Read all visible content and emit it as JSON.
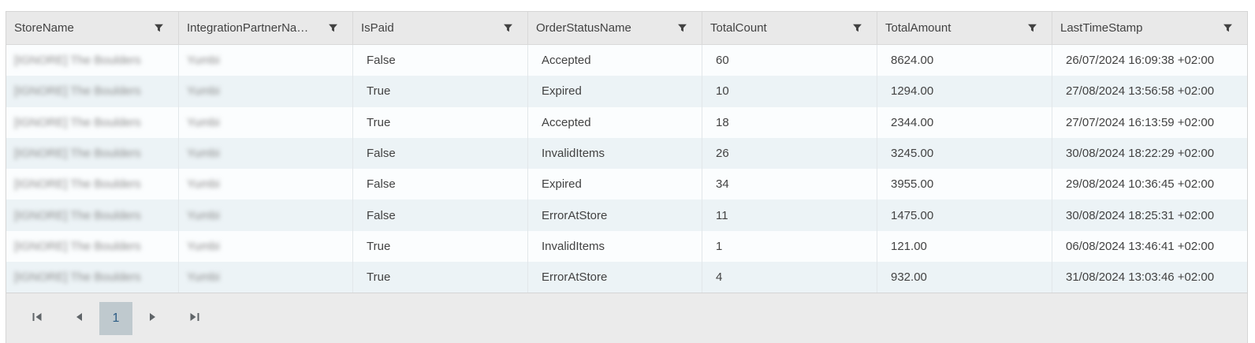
{
  "grid": {
    "columns": [
      {
        "label": "StoreName"
      },
      {
        "label": "IntegrationPartnerNa…"
      },
      {
        "label": "IsPaid"
      },
      {
        "label": "OrderStatusName"
      },
      {
        "label": "TotalCount"
      },
      {
        "label": "TotalAmount"
      },
      {
        "label": "LastTimeStamp"
      }
    ],
    "redacted_columns": [
      0,
      1
    ],
    "rows": [
      [
        "[IGNORE] The Boulders",
        "Yumbi",
        "False",
        "Accepted",
        "60",
        "8624.00",
        "26/07/2024 16:09:38 +02:00"
      ],
      [
        "[IGNORE] The Boulders",
        "Yumbi",
        "True",
        "Expired",
        "10",
        "1294.00",
        "27/08/2024 13:56:58 +02:00"
      ],
      [
        "[IGNORE] The Boulders",
        "Yumbi",
        "True",
        "Accepted",
        "18",
        "2344.00",
        "27/07/2024 16:13:59 +02:00"
      ],
      [
        "[IGNORE] The Boulders",
        "Yumbi",
        "False",
        "InvalidItems",
        "26",
        "3245.00",
        "30/08/2024 18:22:29 +02:00"
      ],
      [
        "[IGNORE] The Boulders",
        "Yumbi",
        "False",
        "Expired",
        "34",
        "3955.00",
        "29/08/2024 10:36:45 +02:00"
      ],
      [
        "[IGNORE] The Boulders",
        "Yumbi",
        "False",
        "ErrorAtStore",
        "11",
        "1475.00",
        "30/08/2024 18:25:31 +02:00"
      ],
      [
        "[IGNORE] The Boulders",
        "Yumbi",
        "True",
        "InvalidItems",
        "1",
        "121.00",
        "06/08/2024 13:46:41 +02:00"
      ],
      [
        "[IGNORE] The Boulders",
        "Yumbi",
        "True",
        "ErrorAtStore",
        "4",
        "932.00",
        "31/08/2024 13:03:46 +02:00"
      ]
    ]
  },
  "pager": {
    "current_page": "1"
  },
  "colors": {
    "header_bg": "#e9e9e9",
    "row_odd_bg": "#fbfdfe",
    "row_even_bg": "#ecf3f6",
    "pager_bg": "#ebebeb",
    "selected_page_bg": "#bfc9ce",
    "selected_page_text": "#2c5c85",
    "text": "#424242",
    "border": "#d5d5d5"
  }
}
